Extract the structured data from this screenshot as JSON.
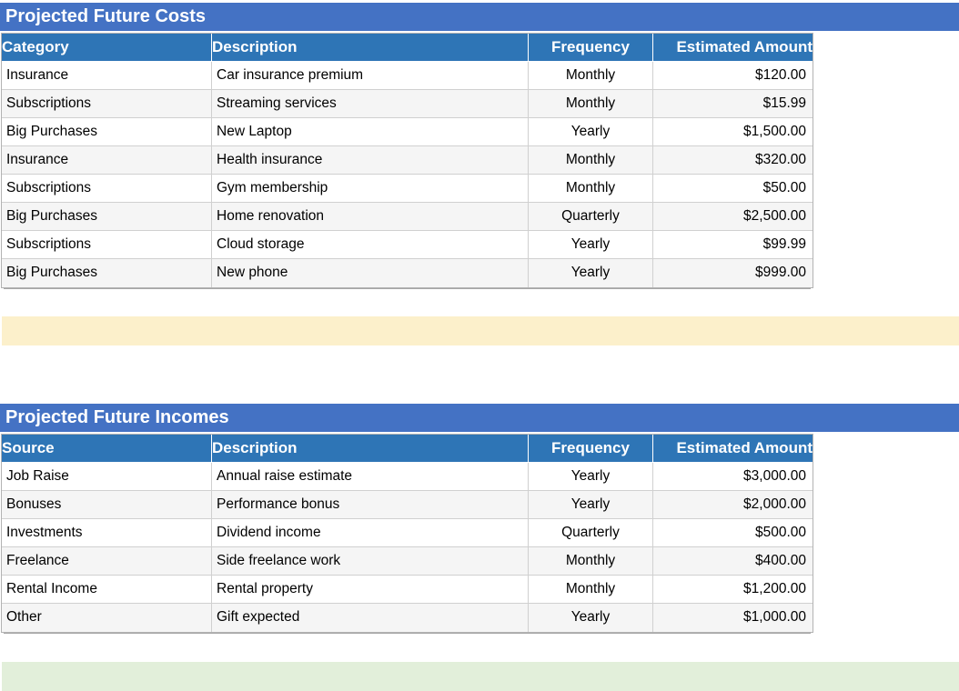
{
  "costs": {
    "title": "Projected Future Costs",
    "columns": [
      "Category",
      "Description",
      "Frequency",
      "Estimated Amount"
    ],
    "rows": [
      [
        "Insurance",
        "Car insurance premium",
        "Monthly",
        "$120.00"
      ],
      [
        "Subscriptions",
        "Streaming services",
        "Monthly",
        "$15.99"
      ],
      [
        "Big Purchases",
        "New Laptop",
        "Yearly",
        "$1,500.00"
      ],
      [
        "Insurance",
        "Health insurance",
        "Monthly",
        "$320.00"
      ],
      [
        "Subscriptions",
        "Gym membership",
        "Monthly",
        "$50.00"
      ],
      [
        "Big Purchases",
        "Home renovation",
        "Quarterly",
        "$2,500.00"
      ],
      [
        "Subscriptions",
        "Cloud storage",
        "Yearly",
        "$99.99"
      ],
      [
        "Big Purchases",
        "New phone",
        "Yearly",
        "$999.00"
      ]
    ]
  },
  "incomes": {
    "title": "Projected Future Incomes",
    "columns": [
      "Source",
      "Description",
      "Frequency",
      "Estimated Amount"
    ],
    "rows": [
      [
        "Job Raise",
        "Annual raise estimate",
        "Yearly",
        "$3,000.00"
      ],
      [
        "Bonuses",
        "Performance bonus",
        "Yearly",
        "$2,000.00"
      ],
      [
        "Investments",
        "Dividend income",
        "Quarterly",
        "$500.00"
      ],
      [
        "Freelance",
        "Side freelance work",
        "Monthly",
        "$400.00"
      ],
      [
        "Rental Income",
        "Rental property",
        "Monthly",
        "$1,200.00"
      ],
      [
        "Other",
        "Gift expected",
        "Yearly",
        "$1,000.00"
      ]
    ]
  },
  "colors": {
    "title_bar": "#4472C4",
    "header_bar": "#2E75B6",
    "row_alt": "#F5F5F5",
    "cell_border": "#D0D0D0",
    "yellow_band": "#FCF0CB",
    "green_band": "#E2EFDA"
  }
}
